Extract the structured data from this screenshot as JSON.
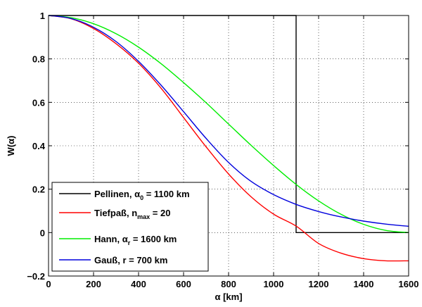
{
  "chart_data": {
    "type": "line",
    "xlabel": "α [km]",
    "ylabel": "W(α)",
    "xlim": [
      0,
      1600
    ],
    "ylim": [
      -0.2,
      1.0
    ],
    "xticks": [
      0,
      200,
      400,
      600,
      800,
      1000,
      1200,
      1400,
      1600
    ],
    "yticks": [
      -0.2,
      0,
      0.2,
      0.4,
      0.6,
      0.8,
      1
    ],
    "xtick_labels": [
      "0",
      "200",
      "400",
      "600",
      "800",
      "1000",
      "1200",
      "1400",
      "1600"
    ],
    "ytick_labels": [
      "−0.2",
      "0",
      "0.2",
      "0.4",
      "0.6",
      "0.8",
      "1"
    ],
    "grid": true,
    "legend_position": "bottom-left",
    "series": [
      {
        "name_parts": [
          "Pellinen, α",
          "0",
          " = 1100 km"
        ],
        "color": "#000000",
        "x": [
          0,
          1100,
          1100,
          1600
        ],
        "y": [
          1,
          1,
          0,
          0
        ]
      },
      {
        "name_parts": [
          "Tiefpaß, n",
          "max",
          " = 20"
        ],
        "color": "#ff0000",
        "x": [
          0,
          100,
          200,
          300,
          400,
          500,
          600,
          700,
          800,
          900,
          1000,
          1100,
          1200,
          1300,
          1400,
          1500,
          1600
        ],
        "y": [
          1.0,
          0.985,
          0.94,
          0.87,
          0.78,
          0.665,
          0.53,
          0.395,
          0.27,
          0.165,
          0.085,
          0.03,
          -0.05,
          -0.095,
          -0.12,
          -0.13,
          -0.13
        ]
      },
      {
        "name_parts": [
          "Hann, α",
          "r",
          " = 1600 km"
        ],
        "color": "#00ee00",
        "x": [
          0,
          100,
          200,
          300,
          400,
          500,
          600,
          700,
          800,
          900,
          1000,
          1100,
          1200,
          1300,
          1400,
          1500,
          1600
        ],
        "y": [
          1.0,
          0.99,
          0.962,
          0.916,
          0.854,
          0.778,
          0.691,
          0.598,
          0.5,
          0.402,
          0.309,
          0.222,
          0.146,
          0.084,
          0.038,
          0.01,
          0.0
        ]
      },
      {
        "name_parts": [
          "Gauß, r = 700 km",
          "",
          ""
        ],
        "color": "#0000dd",
        "x": [
          0,
          100,
          200,
          300,
          400,
          500,
          600,
          700,
          800,
          900,
          1000,
          1100,
          1200,
          1300,
          1400,
          1500,
          1600
        ],
        "y": [
          1.0,
          0.986,
          0.946,
          0.88,
          0.789,
          0.679,
          0.557,
          0.434,
          0.323,
          0.236,
          0.175,
          0.13,
          0.097,
          0.072,
          0.053,
          0.039,
          0.029
        ]
      }
    ]
  }
}
